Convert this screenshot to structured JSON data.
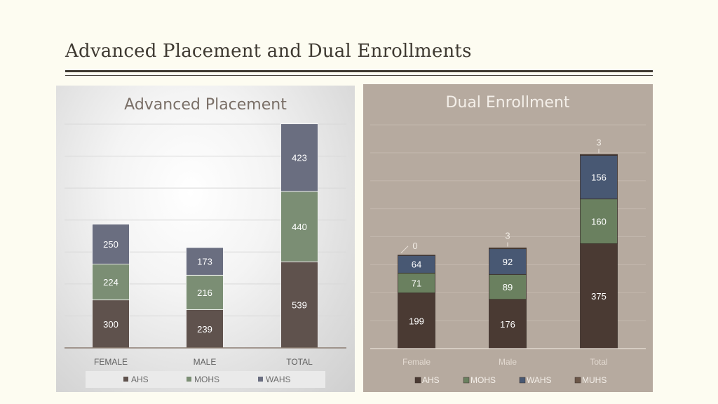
{
  "slide": {
    "title": "Advanced Placement and Dual Enrollments"
  },
  "colors": {
    "ap": {
      "AHS": "#5f524d",
      "MOHS": "#7b8e74",
      "WAHS": "#6a6e80"
    },
    "de": {
      "AHS": "#4a3a33",
      "MOHS": "#6a805f",
      "WAHS": "#485873",
      "MUHS": "#6b5648"
    }
  },
  "chart_data": [
    {
      "type": "bar",
      "stacked": true,
      "title": "Advanced Placement",
      "categories": [
        "FEMALE",
        "MALE",
        "TOTAL"
      ],
      "series": [
        {
          "name": "AHS",
          "values": [
            300,
            239,
            539
          ]
        },
        {
          "name": "MOHS",
          "values": [
            224,
            216,
            440
          ]
        },
        {
          "name": "WAHS",
          "values": [
            250,
            173,
            423
          ]
        }
      ],
      "ylim": [
        0,
        1400
      ],
      "grid": true,
      "legend": "bottom"
    },
    {
      "type": "bar",
      "stacked": true,
      "title": "Dual Enrollment",
      "categories": [
        "Female",
        "Male",
        "Total"
      ],
      "series": [
        {
          "name": "AHS",
          "values": [
            199,
            176,
            375
          ]
        },
        {
          "name": "MOHS",
          "values": [
            71,
            89,
            160
          ]
        },
        {
          "name": "WAHS",
          "values": [
            64,
            92,
            156
          ]
        },
        {
          "name": "MUHS",
          "values": [
            0,
            3,
            3
          ]
        }
      ],
      "ylim": [
        0,
        800
      ],
      "grid": true,
      "legend": "bottom"
    }
  ]
}
